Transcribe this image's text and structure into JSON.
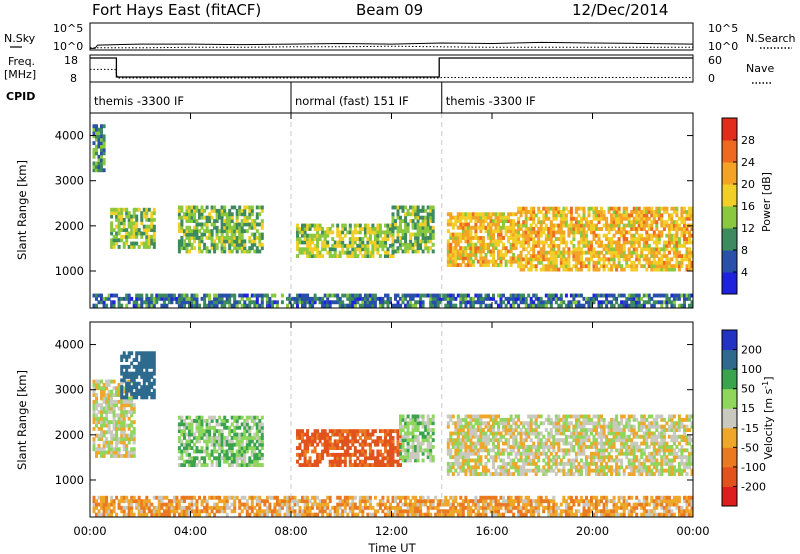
{
  "header": {
    "radar": "Fort Hays East (fitACF)",
    "beam": "Beam 09",
    "date": "12/Dec/2014"
  },
  "noise_panel": {
    "left_label": "N.Sky",
    "right_label": "N.Search",
    "left_ticks": [
      "10^5",
      "10^0"
    ],
    "right_ticks": [
      "10^5",
      "10^0"
    ]
  },
  "freq_panel": {
    "left_label_top": "Freq.",
    "left_label_units": "[MHz]",
    "left_ticks": [
      "18",
      "8"
    ],
    "right_label": "Nave",
    "right_ticks": [
      "60",
      "0"
    ]
  },
  "cpid": {
    "label": "CPID",
    "segments": [
      {
        "name": "themis -3300 IF",
        "start_h": 0,
        "end_h": 8
      },
      {
        "name": "normal (fast) 151 IF",
        "start_h": 8,
        "end_h": 14
      },
      {
        "name": "themis -3300 IF",
        "start_h": 14,
        "end_h": 24
      }
    ]
  },
  "colors": {
    "power": [
      "#1f22dd",
      "#2850a8",
      "#3d8a5e",
      "#8ac83f",
      "#f2cf28",
      "#f3a326",
      "#ee6a21",
      "#e02d1c"
    ],
    "velocity": [
      "#2233c4",
      "#2d6a8e",
      "#3aa34e",
      "#8ed65c",
      "#c9c9c0",
      "#efa72a",
      "#ea7a22",
      "#e2521d",
      "#dd1e1c"
    ]
  },
  "chart_data": [
    {
      "type": "line",
      "title": "N.Sky / N.Search",
      "x_range_hours": [
        0,
        24
      ],
      "series": [
        {
          "name": "N.Sky",
          "x": [
            0,
            0.2,
            0.3,
            2,
            4,
            6,
            8,
            10,
            12,
            14,
            16,
            18,
            20,
            22,
            24
          ],
          "values": [
            0.3,
            0.3,
            0.9,
            1.1,
            1.1,
            1.0,
            1.1,
            1.2,
            1.1,
            1.3,
            1.2,
            1.4,
            1.3,
            1.2,
            1.1
          ]
        },
        {
          "name": "N.Search",
          "x": [
            0,
            2,
            4,
            6,
            8,
            10,
            12,
            14,
            16,
            18,
            20,
            22,
            24
          ],
          "values": [
            0.4,
            0.4,
            0.5,
            0.5,
            0.6,
            0.6,
            0.7,
            0.6,
            0.5,
            0.5,
            0.5,
            0.5,
            0.5
          ]
        }
      ]
    },
    {
      "type": "line",
      "title": "Freq. / Nave",
      "x_range_hours": [
        0,
        24
      ],
      "series": [
        {
          "name": "Freq. [MHz]",
          "x": [
            0,
            1.05,
            1.05,
            13.9,
            13.9,
            24
          ],
          "values": [
            18,
            18,
            8.5,
            8.5,
            18,
            18
          ]
        },
        {
          "name": "Nave",
          "x": [
            0,
            1,
            1.1,
            13.9,
            14,
            24
          ],
          "values": [
            28,
            28,
            9,
            9,
            10,
            10
          ]
        }
      ]
    },
    {
      "type": "heatmap",
      "title": "Power [dB]",
      "xlabel": "Time UT",
      "ylabel": "Slant Range [km]",
      "x_ticks": [
        "00:00",
        "04:00",
        "08:00",
        "12:00",
        "16:00",
        "20:00",
        "00:00"
      ],
      "y_ticks": [
        "1000",
        "2000",
        "3000",
        "4000"
      ],
      "x_range_hours": [
        0,
        24
      ],
      "y_range_km": [
        180,
        4500
      ],
      "colorbar": {
        "label": "Power [dB]",
        "ticks": [
          "28",
          "24",
          "20",
          "16",
          "12",
          "8",
          "4"
        ],
        "range": [
          0,
          30
        ]
      },
      "regions": [
        {
          "t0": 0.1,
          "t1": 0.6,
          "r0": 3200,
          "r1": 4200,
          "p": 10
        },
        {
          "t0": 0.8,
          "t1": 2.6,
          "r0": 1500,
          "r1": 2400,
          "p": 14
        },
        {
          "t0": 3.5,
          "t1": 6.8,
          "r0": 1400,
          "r1": 2400,
          "p": 13
        },
        {
          "t0": 8.2,
          "t1": 12.0,
          "r0": 1300,
          "r1": 2000,
          "p": 15
        },
        {
          "t0": 12.0,
          "t1": 13.6,
          "r0": 1400,
          "r1": 2400,
          "p": 13
        },
        {
          "t0": 14.2,
          "t1": 17.0,
          "r0": 1100,
          "r1": 2300,
          "p": 20
        },
        {
          "t0": 17.0,
          "t1": 24.0,
          "r0": 1000,
          "r1": 2400,
          "p": 20
        },
        {
          "t0": 0.1,
          "t1": 24.0,
          "r0": 200,
          "r1": 500,
          "p": 8
        }
      ]
    },
    {
      "type": "heatmap",
      "title": "Velocity [m s^-1]",
      "xlabel": "Time UT",
      "ylabel": "Slant Range [km]",
      "x_ticks": [
        "00:00",
        "04:00",
        "08:00",
        "12:00",
        "16:00",
        "20:00",
        "00:00"
      ],
      "y_ticks": [
        "1000",
        "2000",
        "3000",
        "4000"
      ],
      "x_range_hours": [
        0,
        24
      ],
      "y_range_km": [
        180,
        4500
      ],
      "colorbar": {
        "label": "Velocity [m s^-1]",
        "ticks": [
          "200",
          "100",
          "50",
          "15",
          "-15",
          "-50",
          "-100",
          "-200"
        ],
        "range": [
          -250,
          250
        ]
      },
      "regions": [
        {
          "t0": 0.1,
          "t1": 1.8,
          "r0": 1500,
          "r1": 3200,
          "v": 0
        },
        {
          "t0": 1.2,
          "t1": 2.6,
          "r0": 2800,
          "r1": 3800,
          "v": 150
        },
        {
          "t0": 3.5,
          "t1": 6.8,
          "r0": 1300,
          "r1": 2400,
          "v": 40
        },
        {
          "t0": 8.2,
          "t1": 12.3,
          "r0": 1300,
          "r1": 2100,
          "v": -120
        },
        {
          "t0": 12.3,
          "t1": 13.6,
          "r0": 1400,
          "r1": 2400,
          "v": 30
        },
        {
          "t0": 14.2,
          "t1": 24.0,
          "r0": 1100,
          "r1": 2400,
          "v": 0
        },
        {
          "t0": 0.1,
          "t1": 24.0,
          "r0": 200,
          "r1": 600,
          "v": -40
        }
      ]
    }
  ]
}
